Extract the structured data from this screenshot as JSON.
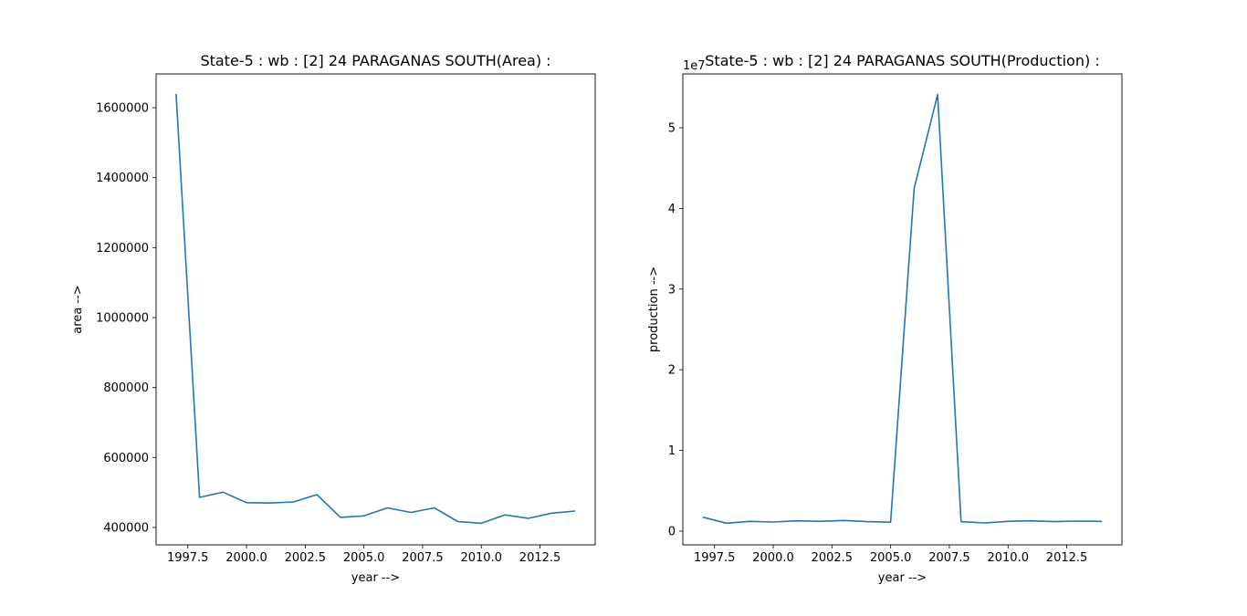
{
  "chart_data": [
    {
      "type": "line",
      "title": "State-5 : wb : [2] 24 PARAGANAS SOUTH(Area) :",
      "xlabel": "year -->",
      "ylabel": "area -->",
      "x": [
        1997,
        1998,
        1999,
        2000,
        2001,
        2002,
        2003,
        2004,
        2005,
        2006,
        2007,
        2008,
        2009,
        2010,
        2011,
        2012,
        2013,
        2014
      ],
      "series": [
        {
          "name": "area",
          "color": "#1f77b4",
          "values": [
            1639000,
            486000,
            501000,
            471000,
            470000,
            473000,
            494000,
            429000,
            433000,
            456000,
            443000,
            456000,
            417000,
            412000,
            436000,
            426000,
            441000,
            447000
          ]
        }
      ],
      "xlim": [
        1996.15,
        2014.85
      ],
      "ylim": [
        350400,
        1696600
      ],
      "xticks": [
        1997.5,
        2000,
        2002.5,
        2005,
        2007.5,
        2010,
        2012.5
      ],
      "xtick_labels": [
        "1997.5",
        "2000.0",
        "2002.5",
        "2005.0",
        "2007.5",
        "2010.0",
        "2012.5"
      ],
      "yticks": [
        400000,
        600000,
        800000,
        1000000,
        1200000,
        1400000,
        1600000
      ],
      "ytick_labels": [
        "400000",
        "600000",
        "800000",
        "1000000",
        "1200000",
        "1400000",
        "1600000"
      ],
      "offset_label": "",
      "grid": false
    },
    {
      "type": "line",
      "title": "State-5 : wb : [2] 24 PARAGANAS SOUTH(Production) :",
      "xlabel": "year -->",
      "ylabel": "production -->",
      "x": [
        1997,
        1998,
        1999,
        2000,
        2001,
        2002,
        2003,
        2004,
        2005,
        2006,
        2007,
        2008,
        2009,
        2010,
        2011,
        2012,
        2013,
        2014
      ],
      "series": [
        {
          "name": "production",
          "color": "#1f77b4",
          "values": [
            1730000,
            980000,
            1210000,
            1130000,
            1280000,
            1210000,
            1320000,
            1170000,
            1100000,
            42500000,
            54100000,
            1170000,
            1020000,
            1210000,
            1280000,
            1170000,
            1240000,
            1210000
          ]
        }
      ],
      "xlim": [
        1996.15,
        2014.85
      ],
      "ylim": [
        -1700000,
        56670000
      ],
      "xticks": [
        1997.5,
        2000,
        2002.5,
        2005,
        2007.5,
        2010,
        2012.5
      ],
      "xtick_labels": [
        "1997.5",
        "2000.0",
        "2002.5",
        "2005.0",
        "2007.5",
        "2010.0",
        "2012.5"
      ],
      "yticks": [
        0,
        10000000,
        20000000,
        30000000,
        40000000,
        50000000
      ],
      "ytick_labels": [
        "0",
        "1",
        "2",
        "3",
        "4",
        "5"
      ],
      "offset_label": "1e7",
      "grid": false
    }
  ]
}
